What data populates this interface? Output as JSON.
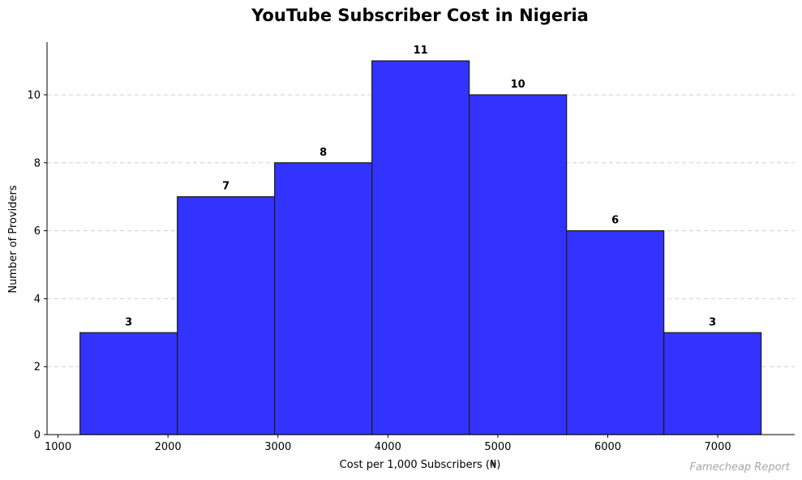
{
  "chart_data": {
    "type": "bar",
    "title": "YouTube Subscriber Cost in Nigeria",
    "xlabel": "Cost per 1,000 Subscribers (₦)",
    "ylabel": "Number of Providers",
    "bins": [
      {
        "start": 1200,
        "end": 2085,
        "count": 3
      },
      {
        "start": 2085,
        "end": 2970,
        "count": 7
      },
      {
        "start": 2970,
        "end": 3855,
        "count": 8
      },
      {
        "start": 3855,
        "end": 4740,
        "count": 11
      },
      {
        "start": 4740,
        "end": 5625,
        "count": 10
      },
      {
        "start": 5625,
        "end": 6510,
        "count": 6
      },
      {
        "start": 6510,
        "end": 7395,
        "count": 3
      }
    ],
    "values": [
      3,
      7,
      8,
      11,
      10,
      6,
      3
    ],
    "xlim": [
      900,
      7700
    ],
    "ylim": [
      0,
      11.55
    ],
    "xticks": [
      "1000",
      "2000",
      "3000",
      "4000",
      "5000",
      "6000",
      "7000"
    ],
    "yticks": [
      "0",
      "2",
      "4",
      "6",
      "8",
      "10"
    ],
    "grid": "horizontal dashed",
    "bar_color": "#3333ff",
    "edge_color": "#1a1a1a",
    "source_note": "Famecheap Report"
  }
}
